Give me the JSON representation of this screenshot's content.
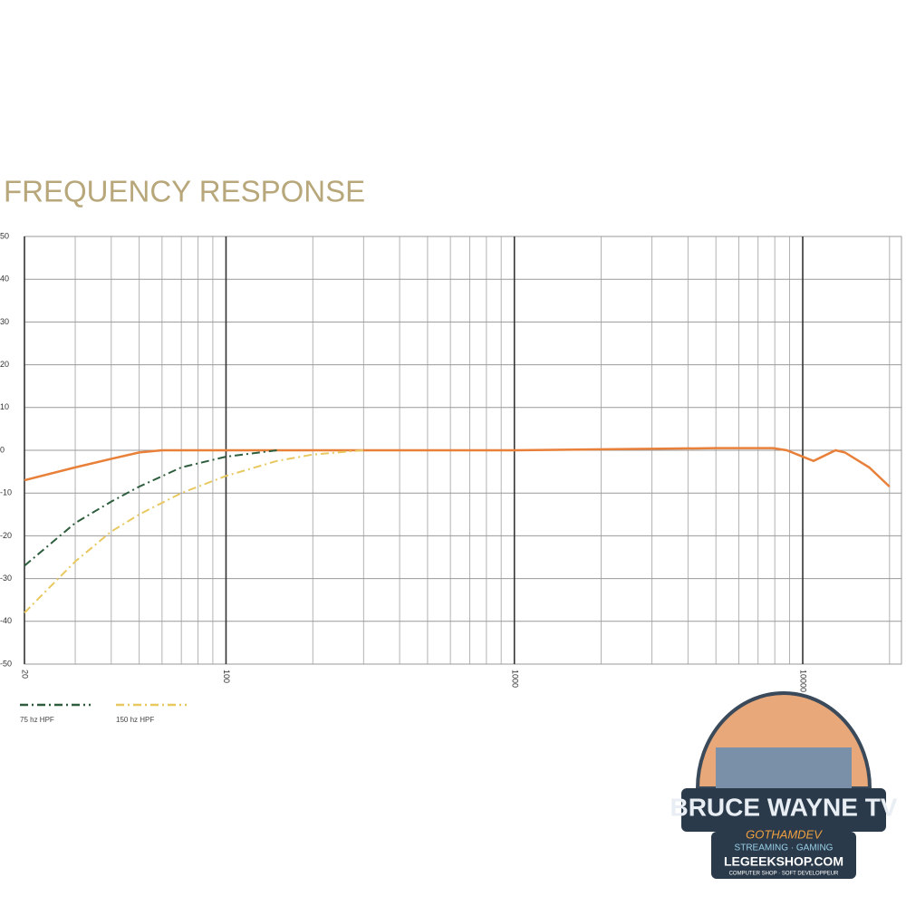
{
  "chart_data": {
    "type": "line",
    "title": "FREQUENCY RESPONSE",
    "xscale": "log",
    "xlim": [
      20,
      22000
    ],
    "xticks": [
      20,
      100,
      1000,
      10000
    ],
    "x_minor_grid": [
      30,
      40,
      50,
      60,
      70,
      80,
      90,
      200,
      300,
      400,
      500,
      600,
      700,
      800,
      900,
      2000,
      3000,
      4000,
      5000,
      6000,
      7000,
      8000,
      9000,
      20000
    ],
    "ylim": [
      -50,
      50
    ],
    "yticks": [
      50,
      40,
      30,
      20,
      10,
      0,
      -10,
      -20,
      -30,
      -40,
      -50
    ],
    "grid": true,
    "series": [
      {
        "color": "#e8803a",
        "style": "solid",
        "x": [
          20,
          30,
          40,
          50,
          60,
          100,
          1000,
          5000,
          7900,
          8800,
          10900,
          13000,
          14000,
          17000,
          20000
        ],
        "values": [
          -7,
          -4,
          -2,
          -0.5,
          0,
          0,
          0,
          0.5,
          0.5,
          0,
          -2.5,
          0,
          -0.5,
          -4,
          -8.5
        ]
      },
      {
        "name": "75 hz HPF",
        "color": "#2e5e3e",
        "style": "dashdot",
        "x": [
          20,
          30,
          40,
          50,
          70,
          100,
          150
        ],
        "values": [
          -27,
          -17,
          -12,
          -8.5,
          -4,
          -1.5,
          0
        ]
      },
      {
        "name": "150 hz HPF",
        "color": "#e8c860",
        "style": "dashdot",
        "x": [
          20,
          30,
          40,
          50,
          70,
          100,
          150,
          200,
          300
        ],
        "values": [
          -38,
          -26,
          -19,
          -15,
          -10,
          -6,
          -2.5,
          -1,
          0
        ]
      }
    ]
  },
  "watermark": {
    "title": "BRUCE WAYNE TV",
    "subtitle": "GOTHAMDEV",
    "tagline": "STREAMING · GAMING",
    "site": "LEGEEKSHOP.COM",
    "footer": "COMPUTER SHOP · SOFT DEVELOPPEUR"
  }
}
